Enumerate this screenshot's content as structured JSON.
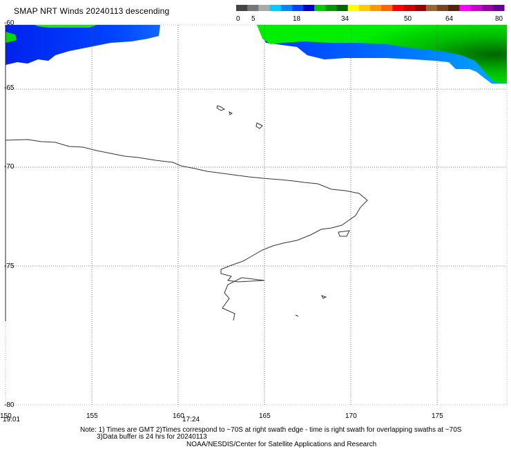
{
  "title": "SMAP NRT Winds  20240113 descending",
  "colorbar": {
    "tick_labels": [
      "0",
      "5",
      "18",
      "34",
      "50",
      "64",
      "80"
    ],
    "colors": [
      "#444444",
      "#777777",
      "#aaaaaa",
      "#00ccff",
      "#0088ff",
      "#0044ff",
      "#0000cc",
      "#00cc00",
      "#009900",
      "#006600",
      "#ffff00",
      "#ffcc00",
      "#ff9900",
      "#ff6600",
      "#ff0000",
      "#cc0000",
      "#990000",
      "#996633",
      "#774422",
      "#552211",
      "#ff00ff",
      "#cc00cc",
      "#9900aa",
      "#660099"
    ]
  },
  "map": {
    "lat_labels": [
      "-60",
      "-65",
      "-70",
      "-75",
      "-80"
    ],
    "lon_labels": [
      "150",
      "155",
      "160",
      "165",
      "170",
      "175"
    ],
    "time_labels": [
      "19:01",
      "17:24"
    ],
    "colors": {
      "wind_low": "#0033ff",
      "wind_mid": "#0099ff",
      "wind_high": "#00ee00",
      "wind_peak": "#008800",
      "coast": "#333333",
      "grid": "#555555"
    }
  },
  "notes": {
    "line1": "Note: 1) Times are GMT 2)Times correspond to ~70S at right swath edge - time is right swath for overlapping swaths at ~70S",
    "line2": "3)Data buffer is 24 hrs for 20240113",
    "credit": "NOAA/NESDIS/Center for Satellite Applications and Research"
  }
}
